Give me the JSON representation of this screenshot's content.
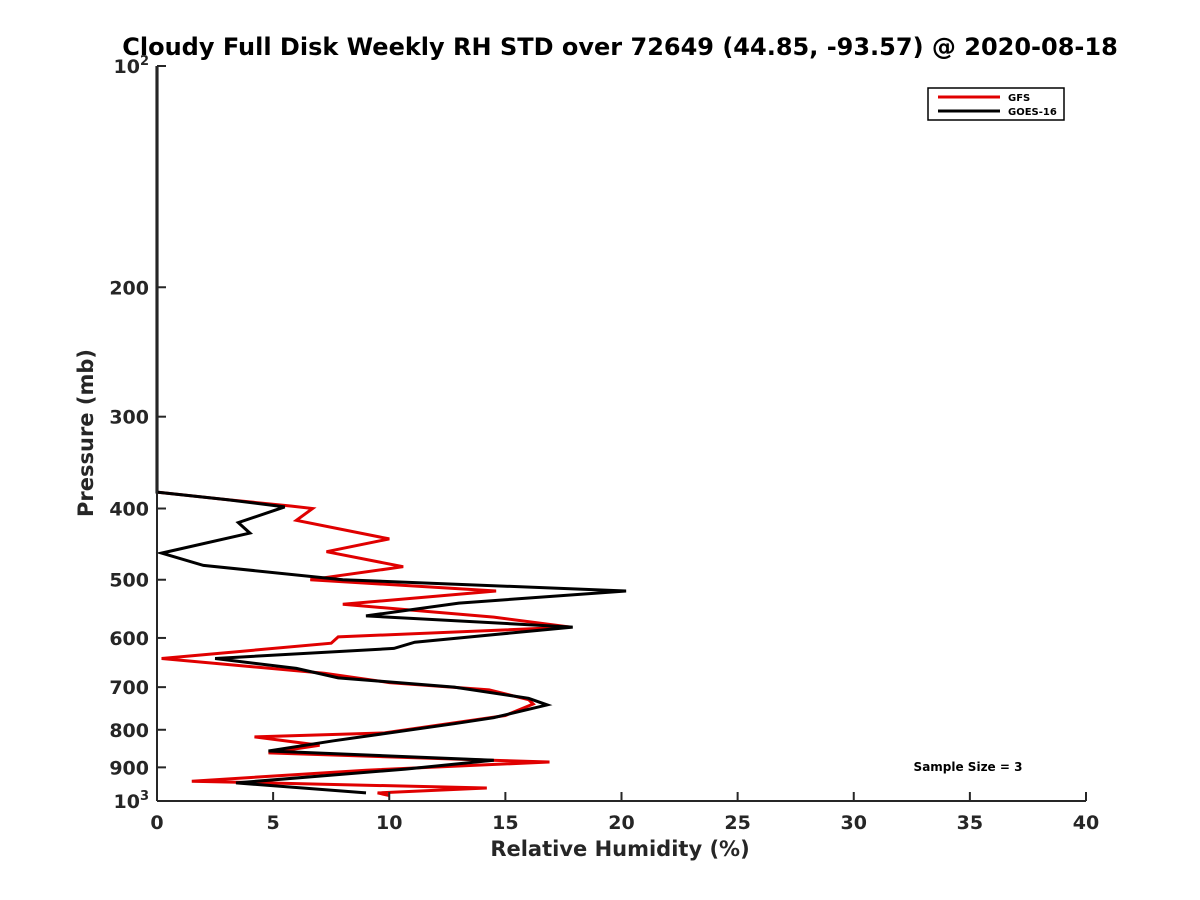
{
  "chart_data": {
    "type": "line",
    "title": "Cloudy Full Disk Weekly RH STD over 72649 (44.85, -93.57) @ 2020-08-18",
    "xlabel": "Relative Humidity (%)",
    "ylabel": "Pressure (mb)",
    "xlim": [
      0,
      40
    ],
    "ylim": [
      100,
      1000
    ],
    "y_scale": "log",
    "y_reversed": true,
    "x_ticks": [
      "0",
      "5",
      "10",
      "15",
      "20",
      "25",
      "30",
      "35",
      "40"
    ],
    "y_ticks": [
      {
        "value": 100,
        "base": "10",
        "exp": "2"
      },
      {
        "value": 200,
        "label": "200"
      },
      {
        "value": 300,
        "label": "300"
      },
      {
        "value": 400,
        "label": "400"
      },
      {
        "value": 500,
        "label": "500"
      },
      {
        "value": 600,
        "label": "600"
      },
      {
        "value": 700,
        "label": "700"
      },
      {
        "value": 800,
        "label": "800"
      },
      {
        "value": 900,
        "label": "900"
      },
      {
        "value": 1000,
        "base": "10",
        "exp": "3"
      }
    ],
    "grid": false,
    "legend_position": "top-right",
    "annotation": "Sample Size = 3",
    "series": [
      {
        "name": "GFS",
        "color": "#e00000",
        "points": [
          [
            0,
            100
          ],
          [
            0,
            380
          ],
          [
            3,
            389
          ],
          [
            5.8,
            397
          ],
          [
            6.7,
            400
          ],
          [
            6,
            415
          ],
          [
            10,
            440
          ],
          [
            7.3,
            458
          ],
          [
            10.6,
            480
          ],
          [
            6.6,
            500
          ],
          [
            14.6,
            518
          ],
          [
            8,
            540
          ],
          [
            14.5,
            562
          ],
          [
            17.8,
            580
          ],
          [
            7.8,
            598
          ],
          [
            7.5,
            610
          ],
          [
            0.2,
            640
          ],
          [
            7.2,
            670
          ],
          [
            10,
            690
          ],
          [
            14.3,
            706
          ],
          [
            16,
            728
          ],
          [
            16.2,
            738
          ],
          [
            15,
            765
          ],
          [
            9.8,
            808
          ],
          [
            4.2,
            818
          ],
          [
            7,
            840
          ],
          [
            4.8,
            860
          ],
          [
            14.4,
            880
          ],
          [
            16.9,
            885
          ],
          [
            9,
            908
          ],
          [
            1.5,
            940
          ],
          [
            14.2,
            960
          ],
          [
            9.5,
            975
          ],
          [
            10,
            983
          ]
        ]
      },
      {
        "name": "GOES-16",
        "color": "#000000",
        "points": [
          [
            0,
            100
          ],
          [
            0,
            380
          ],
          [
            3,
            389
          ],
          [
            5.5,
            398
          ],
          [
            3.5,
            418
          ],
          [
            4,
            432
          ],
          [
            0.2,
            460
          ],
          [
            2,
            478
          ],
          [
            8,
            500
          ],
          [
            20.2,
            518
          ],
          [
            13,
            538
          ],
          [
            9,
            560
          ],
          [
            17.9,
            580
          ],
          [
            11.1,
            608
          ],
          [
            10.2,
            620
          ],
          [
            2.5,
            640
          ],
          [
            6,
            660
          ],
          [
            7.8,
            680
          ],
          [
            12.8,
            700
          ],
          [
            16,
            725
          ],
          [
            16.8,
            740
          ],
          [
            14.5,
            770
          ],
          [
            12.8,
            785
          ],
          [
            7.6,
            828
          ],
          [
            4.8,
            855
          ],
          [
            14.5,
            880
          ],
          [
            10.7,
            905
          ],
          [
            3.4,
            945
          ],
          [
            9,
            975
          ]
        ]
      }
    ]
  }
}
